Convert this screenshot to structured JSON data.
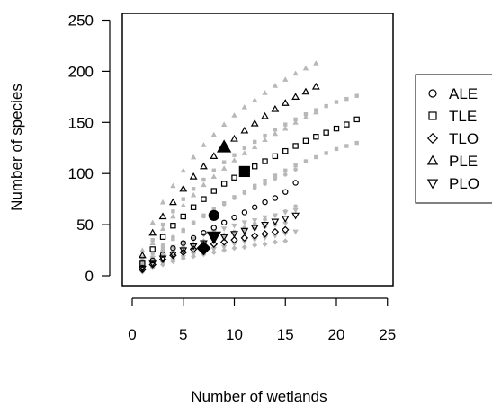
{
  "chart_data": {
    "type": "scatter",
    "title": "",
    "xlabel": "Number of wetlands",
    "ylabel": "Number of species",
    "xlim": [
      0,
      25
    ],
    "ylim": [
      0,
      250
    ],
    "xticks": [
      0,
      5,
      10,
      15,
      20,
      25
    ],
    "yticks": [
      0,
      50,
      100,
      150,
      200,
      250
    ],
    "grid": false,
    "legend_position": "right",
    "band_color": "#b8b8b8",
    "line_color": "#000000",
    "series": [
      {
        "name": "ALE",
        "marker": "circle",
        "x": [
          1,
          2,
          3,
          4,
          5,
          6,
          7,
          8,
          9,
          10,
          11,
          12,
          13,
          14,
          15,
          16
        ],
        "y": [
          8,
          15,
          21,
          27,
          32,
          37,
          42,
          47,
          52,
          57,
          62,
          67,
          72,
          76,
          82,
          91
        ],
        "upper": [
          13,
          22,
          30,
          38,
          45,
          52,
          58,
          64,
          70,
          76,
          81,
          86,
          90,
          95,
          99,
          104
        ],
        "lower": [
          5,
          10,
          14,
          19,
          23,
          27,
          31,
          35,
          39,
          43,
          47,
          51,
          55,
          59,
          63,
          68
        ],
        "observed": {
          "x": 8,
          "y": 59
        }
      },
      {
        "name": "TLE",
        "marker": "square",
        "x": [
          1,
          2,
          3,
          4,
          5,
          6,
          7,
          8,
          9,
          10,
          11,
          12,
          13,
          14,
          15,
          16,
          17,
          18,
          19,
          20,
          21,
          22
        ],
        "y": [
          12,
          26,
          38,
          49,
          58,
          67,
          75,
          83,
          90,
          96,
          101,
          107,
          112,
          117,
          122,
          127,
          132,
          136,
          140,
          144,
          148,
          153
        ],
        "upper": [
          18,
          35,
          50,
          63,
          75,
          85,
          94,
          103,
          111,
          118,
          125,
          131,
          137,
          143,
          148,
          153,
          158,
          162,
          166,
          170,
          173,
          176
        ],
        "lower": [
          8,
          18,
          27,
          36,
          44,
          52,
          59,
          65,
          71,
          77,
          82,
          88,
          93,
          98,
          103,
          108,
          112,
          116,
          120,
          124,
          127,
          130
        ],
        "observed": {
          "x": 11,
          "y": 102
        }
      },
      {
        "name": "TLO",
        "marker": "diamond",
        "x": [
          1,
          2,
          3,
          4,
          5,
          6,
          7,
          8,
          9,
          10,
          11,
          12,
          13,
          14,
          15
        ],
        "y": [
          6,
          11,
          16,
          20,
          23,
          26,
          29,
          31,
          33,
          35,
          37,
          39,
          41,
          43,
          45
        ],
        "upper": [
          9,
          15,
          20,
          24,
          28,
          31,
          34,
          37,
          40,
          42,
          44,
          46,
          48,
          50,
          52
        ],
        "lower": [
          4,
          8,
          11,
          14,
          17,
          19,
          21,
          23,
          25,
          27,
          28,
          30,
          31,
          33,
          34
        ],
        "observed": {
          "x": 7,
          "y": 27
        }
      },
      {
        "name": "PLE",
        "marker": "triangle-up",
        "x": [
          1,
          2,
          3,
          4,
          5,
          6,
          7,
          8,
          9,
          10,
          11,
          12,
          13,
          14,
          15,
          16,
          17,
          18
        ],
        "y": [
          20,
          42,
          58,
          72,
          85,
          97,
          107,
          117,
          126,
          134,
          142,
          149,
          156,
          163,
          169,
          175,
          180,
          185
        ],
        "upper": [
          25,
          52,
          72,
          88,
          103,
          116,
          128,
          138,
          148,
          157,
          165,
          172,
          179,
          186,
          192,
          198,
          203,
          208
        ],
        "lower": [
          15,
          32,
          46,
          58,
          69,
          79,
          89,
          97,
          105,
          113,
          120,
          126,
          133,
          139,
          144,
          150,
          155,
          160
        ],
        "observed": {
          "x": 9,
          "y": 126
        }
      },
      {
        "name": "PLO",
        "marker": "triangle-down",
        "x": [
          1,
          2,
          3,
          4,
          5,
          6,
          7,
          8,
          9,
          10,
          11,
          12,
          13,
          14,
          15,
          16
        ],
        "y": [
          7,
          12,
          17,
          21,
          25,
          29,
          32,
          35,
          38,
          41,
          44,
          47,
          50,
          53,
          56,
          59
        ],
        "upper": [
          10,
          17,
          23,
          28,
          32,
          36,
          40,
          43,
          46,
          49,
          52,
          54,
          57,
          59,
          62,
          64
        ],
        "lower": [
          4,
          8,
          12,
          15,
          18,
          21,
          24,
          26,
          28,
          31,
          33,
          35,
          37,
          39,
          41,
          43
        ],
        "observed": {
          "x": 8,
          "y": 38
        }
      }
    ]
  }
}
